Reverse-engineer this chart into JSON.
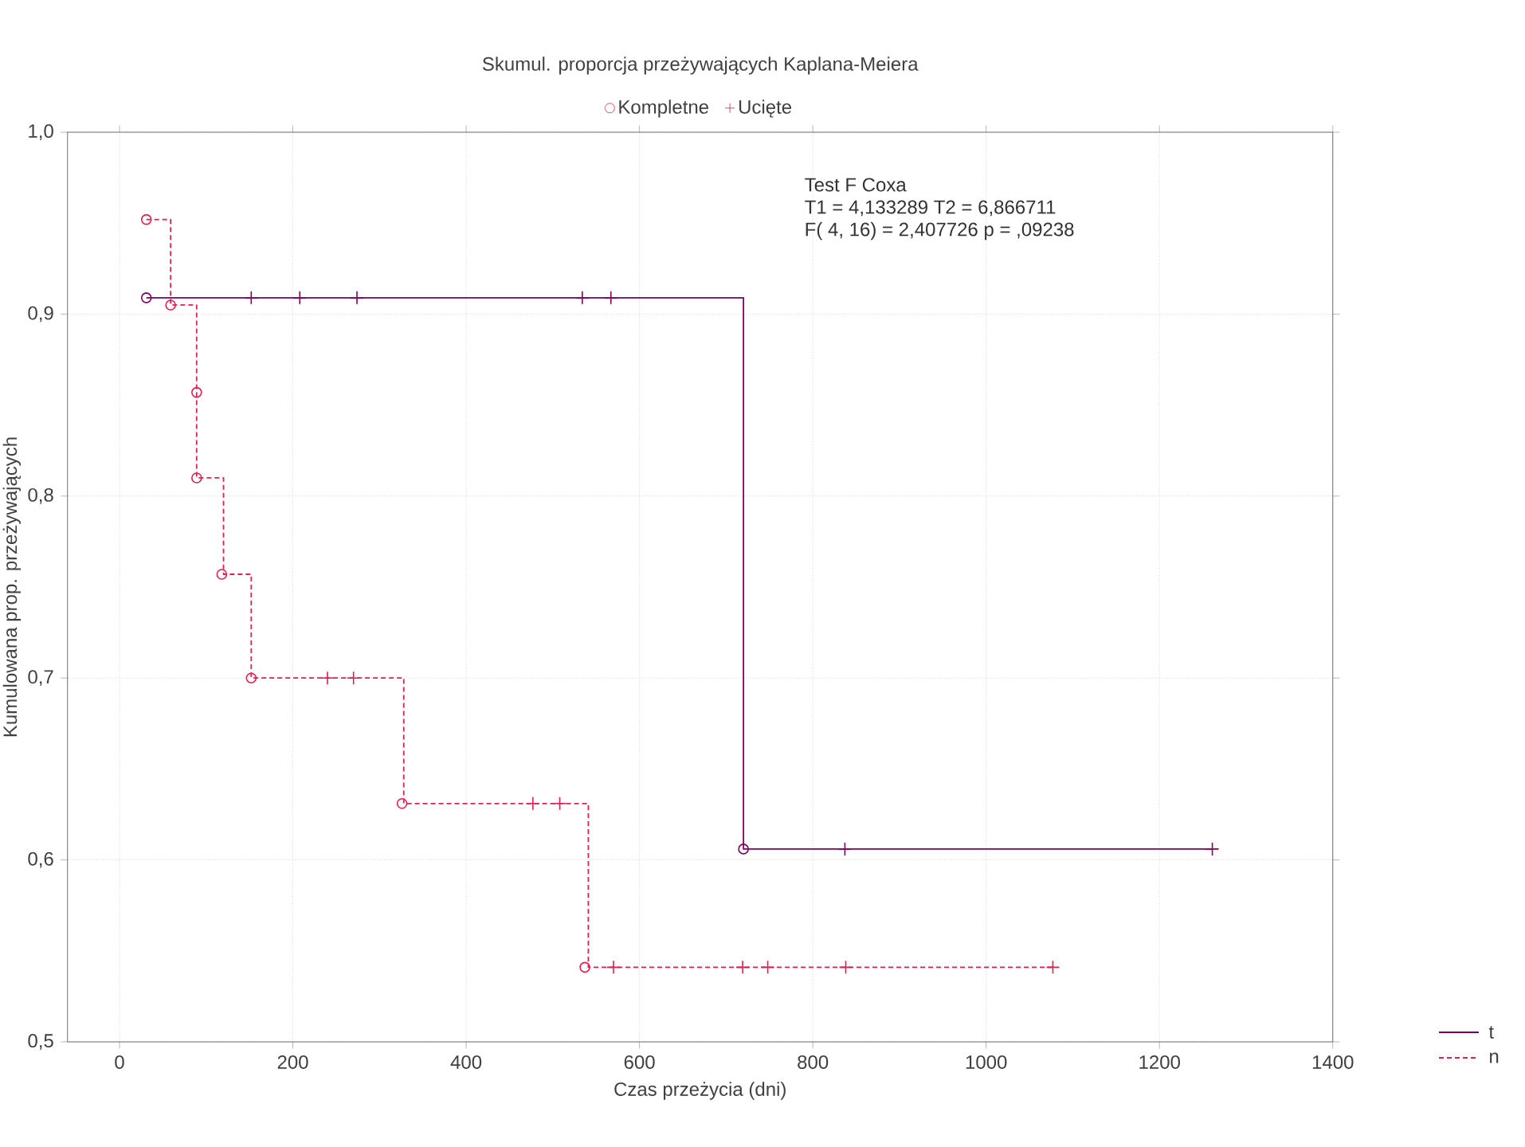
{
  "chart_data": {
    "type": "step",
    "title": "Skumul. proporcja przeżywających Kaplana-Meiera",
    "xlabel": "Czas przeżycia (dni)",
    "ylabel": "Kumulowana prop. przeżywających",
    "annotations": [
      "Test F Coxa",
      "T1 = 4,133289 T2 = 6,866711",
      "F( 4, 16) = 2,407726 p = ,09238"
    ],
    "xlim": [
      -60,
      1400
    ],
    "xticks": [
      0,
      200,
      400,
      600,
      800,
      1000,
      1200,
      1400
    ],
    "ylim": [
      0.5,
      1.0
    ],
    "yticks": [
      {
        "value": 0.5,
        "label": "0,5"
      },
      {
        "value": 0.6,
        "label": "0,6"
      },
      {
        "value": 0.7,
        "label": "0,7"
      },
      {
        "value": 0.8,
        "label": "0,8"
      },
      {
        "value": 0.9,
        "label": "0,9"
      },
      {
        "value": 1.0,
        "label": "1,0"
      }
    ],
    "grid": true,
    "legend": "top",
    "series": [
      {
        "name": "t",
        "color": "#800060",
        "line_style": "solid",
        "marker": "none",
        "x": [
          31,
          720,
          1261
        ],
        "values": [
          0.909,
          0.606,
          0.606
        ]
      },
      {
        "name": "n",
        "color": "#e0204f",
        "line_style": "dashed",
        "marker": "none",
        "x": [
          31,
          59,
          89,
          120,
          152,
          328,
          541,
          1077
        ],
        "values": [
          0.952,
          0.905,
          0.81,
          0.757,
          0.7,
          0.631,
          0.541,
          0.541
        ]
      },
      {
        "name": "Kompletne",
        "type": "scatter",
        "marker": "circle",
        "color": "#e0204f",
        "x": [
          31,
          720,
          31,
          59,
          89,
          89,
          118,
          152,
          326,
          537
        ],
        "values": [
          0.909,
          0.606,
          0.952,
          0.905,
          0.857,
          0.81,
          0.757,
          0.7,
          0.631,
          0.541
        ],
        "colors": [
          "#800060",
          "#800060",
          "#e0204f",
          "#e0204f",
          "#e0204f",
          "#e0204f",
          "#e0204f",
          "#e0204f",
          "#e0204f",
          "#e0204f"
        ]
      },
      {
        "name": "Ucięte",
        "type": "scatter",
        "marker": "cross",
        "color": "#e0204f",
        "x": [
          152,
          208,
          274,
          534,
          567,
          837,
          1261,
          240,
          270,
          477,
          508,
          570,
          719,
          748,
          838,
          1077
        ],
        "values": [
          0.909,
          0.909,
          0.909,
          0.909,
          0.909,
          0.606,
          0.606,
          0.7,
          0.7,
          0.631,
          0.631,
          0.541,
          0.541,
          0.541,
          0.541,
          0.541
        ],
        "colors": [
          "#800060",
          "#800060",
          "#800060",
          "#800060",
          "#800060",
          "#800060",
          "#800060",
          "#e0204f",
          "#e0204f",
          "#e0204f",
          "#e0204f",
          "#e0204f",
          "#e0204f",
          "#e0204f",
          "#e0204f",
          "#e0204f"
        ]
      }
    ]
  }
}
